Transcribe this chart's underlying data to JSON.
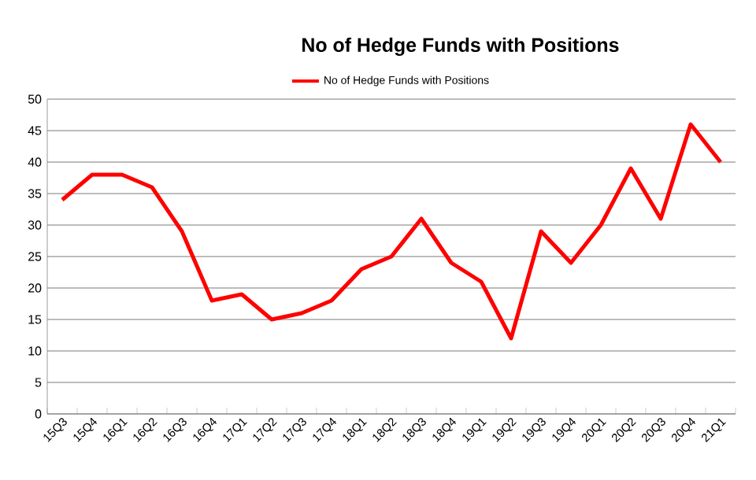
{
  "chart_data": {
    "type": "line",
    "title": "No of Hedge Funds with Positions",
    "categories": [
      "15Q3",
      "15Q4",
      "16Q1",
      "16Q2",
      "16Q3",
      "16Q4",
      "17Q1",
      "17Q2",
      "17Q3",
      "17Q4",
      "18Q1",
      "18Q2",
      "18Q3",
      "18Q4",
      "19Q1",
      "19Q2",
      "19Q3",
      "19Q4",
      "20Q1",
      "20Q2",
      "20Q3",
      "20Q4",
      "21Q1"
    ],
    "series": [
      {
        "name": "No of Hedge Funds with Positions",
        "color": "#ff0000",
        "values": [
          34,
          38,
          38,
          36,
          29,
          18,
          19,
          15,
          16,
          18,
          23,
          25,
          31,
          24,
          21,
          12,
          29,
          24,
          30,
          39,
          31,
          46,
          40
        ]
      }
    ],
    "ylim": [
      0,
      50
    ],
    "yticks": [
      0,
      5,
      10,
      15,
      20,
      25,
      30,
      35,
      40,
      45,
      50
    ],
    "grid": "y",
    "legend": "top",
    "marker": "none",
    "line_style": "solid"
  }
}
